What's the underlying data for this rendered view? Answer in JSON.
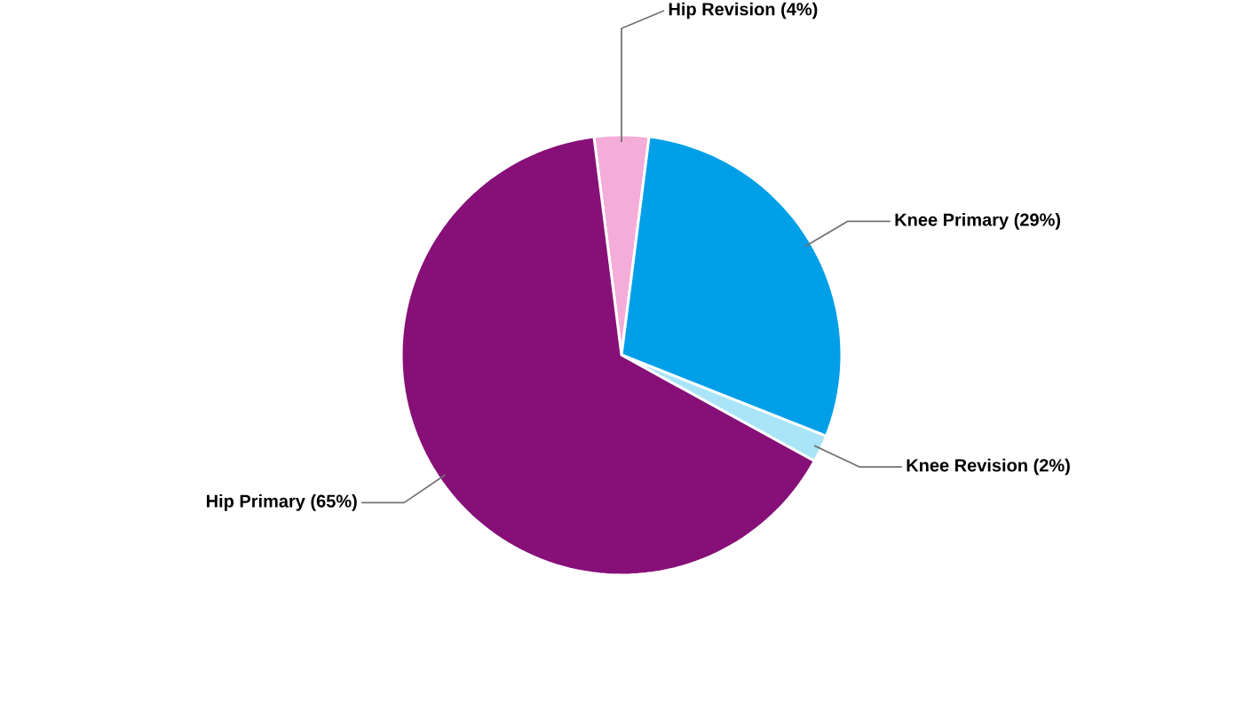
{
  "chart_data": {
    "type": "pie",
    "categories": [
      "Hip Revision",
      "Knee Primary",
      "Knee Revision",
      "Hip Primary"
    ],
    "values": [
      4,
      29,
      2,
      65
    ],
    "value_labels": [
      "(4%)",
      "(29%)",
      "(2%)",
      "(65%)"
    ],
    "colors": [
      "#f4acd8",
      "#009fe8",
      "#a9e4f8",
      "#861078"
    ]
  }
}
